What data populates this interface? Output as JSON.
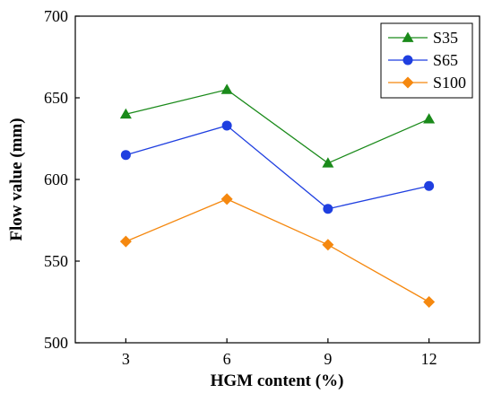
{
  "chart_data": {
    "type": "line",
    "title": "",
    "xlabel": "HGM content (%)",
    "ylabel": "Flow value (mm)",
    "x": [
      3,
      6,
      9,
      12
    ],
    "xticks": [
      "3",
      "6",
      "9",
      "12"
    ],
    "yticks": [
      "500",
      "550",
      "600",
      "650",
      "700"
    ],
    "xlim": [
      1.5,
      13.5
    ],
    "ylim": [
      500,
      700
    ],
    "grid": false,
    "legend_position": "top-right",
    "series": [
      {
        "name": "S35",
        "marker": "triangle",
        "color": "#1a8a1a",
        "values": [
          640,
          655,
          610,
          637
        ]
      },
      {
        "name": "S65",
        "marker": "circle",
        "color": "#1f3fe0",
        "values": [
          615,
          633,
          582,
          596
        ]
      },
      {
        "name": "S100",
        "marker": "diamond",
        "color": "#f5880f",
        "values": [
          562,
          588,
          560,
          525
        ]
      }
    ]
  }
}
